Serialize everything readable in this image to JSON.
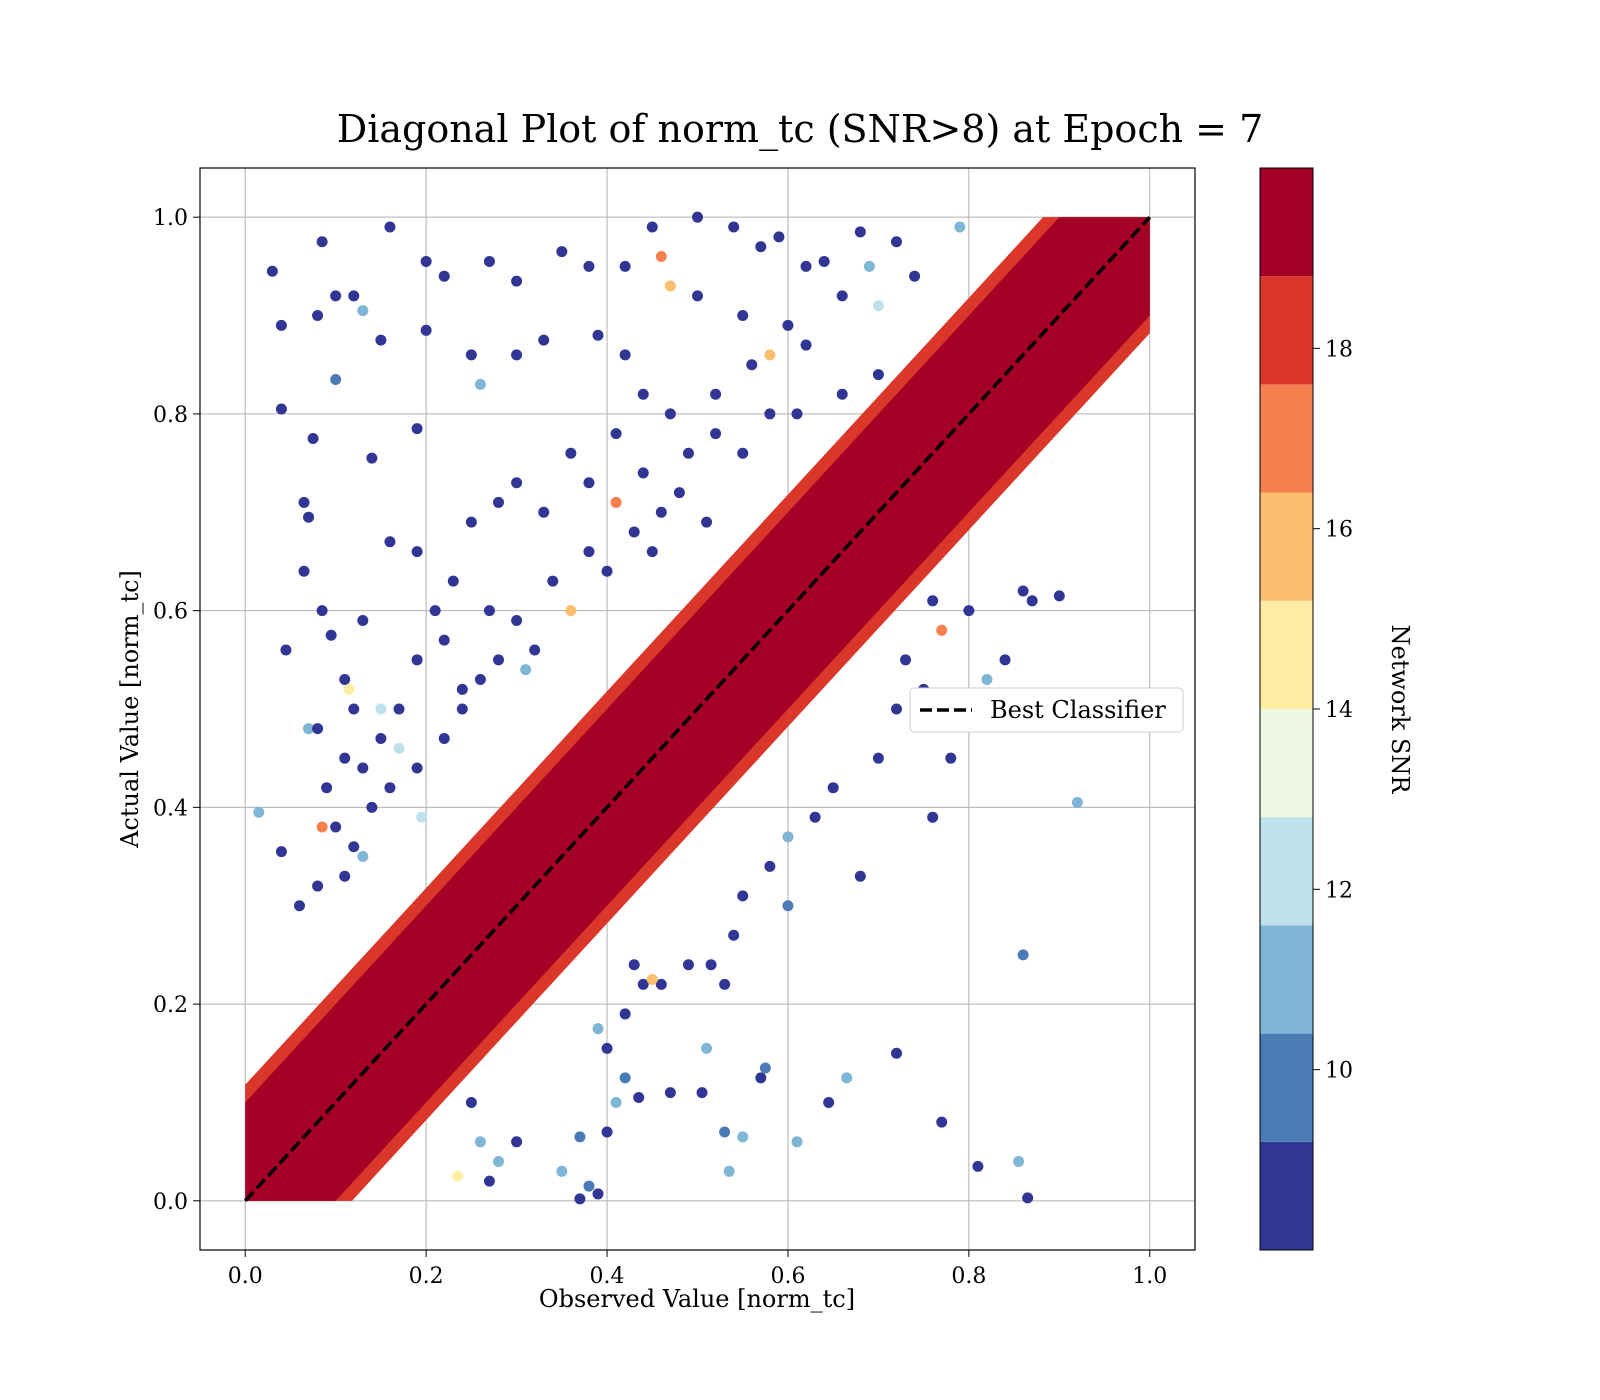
{
  "chart_data": {
    "type": "scatter",
    "title": "Diagonal Plot of norm_tc (SNR>8) at Epoch = 7",
    "xlabel": "Observed Value [norm_tc]",
    "ylabel": "Actual Value [norm_tc]",
    "xlim": [
      -0.05,
      1.05
    ],
    "ylim": [
      -0.05,
      1.05
    ],
    "x_ticks": [
      "0.0",
      "0.2",
      "0.4",
      "0.6",
      "0.8",
      "1.0"
    ],
    "y_ticks": [
      "0.0",
      "0.2",
      "0.4",
      "0.6",
      "0.8",
      "1.0"
    ],
    "grid": true,
    "reference_line": {
      "label": "Best Classifier",
      "from": [
        0,
        0
      ],
      "to": [
        1,
        1
      ],
      "color": "#000000",
      "style": "dashed"
    },
    "legend_location": "center-right",
    "colorbar": {
      "label": "Network SNR",
      "range": [
        8,
        20
      ],
      "ticks": [
        "10",
        "12",
        "14",
        "16",
        "18"
      ],
      "levels": [
        {
          "from": 8,
          "to": 9.2,
          "color": "#313695"
        },
        {
          "from": 9.2,
          "to": 10.4,
          "color": "#4a7bb7"
        },
        {
          "from": 10.4,
          "to": 11.6,
          "color": "#7fb5d5"
        },
        {
          "from": 11.6,
          "to": 12.8,
          "color": "#bde2ec"
        },
        {
          "from": 12.8,
          "to": 14.0,
          "color": "#eef7e1"
        },
        {
          "from": 14.0,
          "to": 15.2,
          "color": "#feeda2"
        },
        {
          "from": 15.2,
          "to": 16.4,
          "color": "#fdbe70"
        },
        {
          "from": 16.4,
          "to": 17.6,
          "color": "#f57f4f"
        },
        {
          "from": 17.6,
          "to": 18.8,
          "color": "#da372a"
        },
        {
          "from": 18.8,
          "to": 20.0,
          "color": "#a50026"
        }
      ]
    },
    "dense_band": {
      "center_line": "y = x",
      "half_width_snr_high": 0.1,
      "color": "#a50026"
    },
    "points": [
      [
        0.16,
        0.99,
        8.5
      ],
      [
        0.03,
        0.945,
        8.5
      ],
      [
        0.085,
        0.975,
        8.5
      ],
      [
        0.2,
        0.955,
        8.5
      ],
      [
        0.22,
        0.94,
        8.5
      ],
      [
        0.04,
        0.89,
        8.5
      ],
      [
        0.08,
        0.9,
        8.5
      ],
      [
        0.1,
        0.92,
        8.5
      ],
      [
        0.12,
        0.92,
        8.5
      ],
      [
        0.13,
        0.905,
        11
      ],
      [
        0.1,
        0.835,
        10
      ],
      [
        0.15,
        0.875,
        8.5
      ],
      [
        0.04,
        0.805,
        8.5
      ],
      [
        0.075,
        0.775,
        8.5
      ],
      [
        0.14,
        0.755,
        8.5
      ],
      [
        0.19,
        0.785,
        8.5
      ],
      [
        0.2,
        0.885,
        8.5
      ],
      [
        0.25,
        0.86,
        8.5
      ],
      [
        0.26,
        0.83,
        11
      ],
      [
        0.3,
        0.86,
        8.5
      ],
      [
        0.33,
        0.875,
        8.5
      ],
      [
        0.27,
        0.955,
        8.5
      ],
      [
        0.3,
        0.935,
        8.5
      ],
      [
        0.35,
        0.965,
        8.5
      ],
      [
        0.38,
        0.95,
        8.5
      ],
      [
        0.42,
        0.95,
        8.5
      ],
      [
        0.45,
        0.99,
        8.5
      ],
      [
        0.5,
        1.0,
        8.5
      ],
      [
        0.54,
        0.99,
        8.5
      ],
      [
        0.57,
        0.97,
        8.5
      ],
      [
        0.59,
        0.98,
        8.5
      ],
      [
        0.62,
        0.95,
        8.5
      ],
      [
        0.64,
        0.955,
        8.5
      ],
      [
        0.66,
        0.92,
        8.5
      ],
      [
        0.68,
        0.985,
        8.5
      ],
      [
        0.72,
        0.975,
        8.5
      ],
      [
        0.74,
        0.94,
        8.5
      ],
      [
        0.79,
        0.99,
        11
      ],
      [
        0.5,
        0.92,
        8.5
      ],
      [
        0.47,
        0.93,
        15.5
      ],
      [
        0.46,
        0.96,
        17
      ],
      [
        0.55,
        0.9,
        8.5
      ],
      [
        0.6,
        0.89,
        8.5
      ],
      [
        0.7,
        0.91,
        12
      ],
      [
        0.69,
        0.95,
        11
      ],
      [
        0.39,
        0.88,
        8.5
      ],
      [
        0.42,
        0.86,
        8.5
      ],
      [
        0.44,
        0.82,
        8.5
      ],
      [
        0.47,
        0.8,
        8.5
      ],
      [
        0.52,
        0.82,
        8.5
      ],
      [
        0.56,
        0.85,
        8.5
      ],
      [
        0.58,
        0.86,
        16
      ],
      [
        0.62,
        0.87,
        8.5
      ],
      [
        0.66,
        0.82,
        8.5
      ],
      [
        0.7,
        0.84,
        8.5
      ],
      [
        0.045,
        0.56,
        8.5
      ],
      [
        0.065,
        0.71,
        8.5
      ],
      [
        0.07,
        0.695,
        8.5
      ],
      [
        0.065,
        0.64,
        8.5
      ],
      [
        0.085,
        0.6,
        8.5
      ],
      [
        0.095,
        0.575,
        8.5
      ],
      [
        0.07,
        0.48,
        11
      ],
      [
        0.08,
        0.48,
        8.5
      ],
      [
        0.015,
        0.395,
        11
      ],
      [
        0.11,
        0.53,
        8.5
      ],
      [
        0.12,
        0.5,
        8.5
      ],
      [
        0.13,
        0.59,
        8.5
      ],
      [
        0.16,
        0.67,
        8.5
      ],
      [
        0.19,
        0.66,
        8.5
      ],
      [
        0.21,
        0.6,
        8.5
      ],
      [
        0.23,
        0.63,
        8.5
      ],
      [
        0.25,
        0.69,
        8.5
      ],
      [
        0.28,
        0.71,
        8.5
      ],
      [
        0.3,
        0.73,
        8.5
      ],
      [
        0.33,
        0.7,
        8.5
      ],
      [
        0.36,
        0.76,
        8.5
      ],
      [
        0.38,
        0.73,
        8.5
      ],
      [
        0.41,
        0.78,
        8.5
      ],
      [
        0.44,
        0.74,
        8.5
      ],
      [
        0.46,
        0.7,
        8.5
      ],
      [
        0.49,
        0.76,
        8.5
      ],
      [
        0.52,
        0.78,
        8.5
      ],
      [
        0.55,
        0.76,
        8.5
      ],
      [
        0.58,
        0.8,
        8.5
      ],
      [
        0.61,
        0.8,
        8.5
      ],
      [
        0.19,
        0.55,
        8.5
      ],
      [
        0.22,
        0.57,
        8.5
      ],
      [
        0.24,
        0.52,
        8.5
      ],
      [
        0.27,
        0.6,
        8.5
      ],
      [
        0.3,
        0.59,
        8.5
      ],
      [
        0.32,
        0.56,
        8.5
      ],
      [
        0.34,
        0.63,
        8.5
      ],
      [
        0.36,
        0.6,
        15.5
      ],
      [
        0.38,
        0.66,
        8.5
      ],
      [
        0.4,
        0.64,
        8.5
      ],
      [
        0.43,
        0.68,
        8.5
      ],
      [
        0.45,
        0.66,
        8.5
      ],
      [
        0.48,
        0.72,
        8.5
      ],
      [
        0.41,
        0.71,
        17.5
      ],
      [
        0.51,
        0.69,
        8.5
      ],
      [
        0.11,
        0.45,
        8.5
      ],
      [
        0.13,
        0.44,
        8.5
      ],
      [
        0.15,
        0.47,
        8.5
      ],
      [
        0.17,
        0.5,
        8.5
      ],
      [
        0.19,
        0.44,
        8.5
      ],
      [
        0.22,
        0.47,
        8.5
      ],
      [
        0.24,
        0.5,
        8.5
      ],
      [
        0.26,
        0.53,
        8.5
      ],
      [
        0.28,
        0.55,
        8.5
      ],
      [
        0.31,
        0.54,
        11
      ],
      [
        0.09,
        0.42,
        8.5
      ],
      [
        0.1,
        0.38,
        8.5
      ],
      [
        0.12,
        0.36,
        8.5
      ],
      [
        0.14,
        0.4,
        8.5
      ],
      [
        0.16,
        0.42,
        8.5
      ],
      [
        0.04,
        0.355,
        8.5
      ],
      [
        0.06,
        0.3,
        8.5
      ],
      [
        0.08,
        0.32,
        8.5
      ],
      [
        0.11,
        0.33,
        8.5
      ],
      [
        0.13,
        0.35,
        11
      ],
      [
        0.085,
        0.38,
        17.5
      ],
      [
        0.115,
        0.52,
        14
      ],
      [
        0.15,
        0.5,
        12
      ],
      [
        0.17,
        0.46,
        12
      ],
      [
        0.195,
        0.39,
        12
      ],
      [
        0.9,
        0.615,
        8.5
      ],
      [
        0.87,
        0.61,
        8.5
      ],
      [
        0.86,
        0.62,
        8.5
      ],
      [
        0.8,
        0.6,
        8.5
      ],
      [
        0.76,
        0.61,
        8.5
      ],
      [
        0.77,
        0.58,
        17.5
      ],
      [
        0.73,
        0.55,
        8.5
      ],
      [
        0.75,
        0.52,
        8.5
      ],
      [
        0.72,
        0.5,
        8.5
      ],
      [
        0.7,
        0.45,
        8.5
      ],
      [
        0.65,
        0.42,
        8.5
      ],
      [
        0.63,
        0.39,
        8.5
      ],
      [
        0.6,
        0.37,
        11
      ],
      [
        0.58,
        0.34,
        8.5
      ],
      [
        0.55,
        0.31,
        8.5
      ],
      [
        0.82,
        0.53,
        11
      ],
      [
        0.84,
        0.55,
        8.5
      ],
      [
        0.78,
        0.45,
        8.5
      ],
      [
        0.76,
        0.39,
        8.5
      ],
      [
        0.92,
        0.405,
        11
      ],
      [
        0.68,
        0.33,
        8.5
      ],
      [
        0.6,
        0.3,
        10
      ],
      [
        0.54,
        0.27,
        8.5
      ],
      [
        0.49,
        0.24,
        8.5
      ],
      [
        0.46,
        0.22,
        8.5
      ],
      [
        0.86,
        0.25,
        10
      ],
      [
        0.72,
        0.15,
        8.5
      ],
      [
        0.77,
        0.08,
        8.5
      ],
      [
        0.81,
        0.035,
        8.5
      ],
      [
        0.855,
        0.04,
        11
      ],
      [
        0.865,
        0.003,
        8.5
      ],
      [
        0.665,
        0.125,
        11
      ],
      [
        0.645,
        0.1,
        8.5
      ],
      [
        0.61,
        0.06,
        11
      ],
      [
        0.575,
        0.135,
        10
      ],
      [
        0.57,
        0.125,
        8.5
      ],
      [
        0.55,
        0.065,
        11
      ],
      [
        0.53,
        0.07,
        10
      ],
      [
        0.535,
        0.03,
        11
      ],
      [
        0.505,
        0.11,
        8.5
      ],
      [
        0.51,
        0.155,
        11
      ],
      [
        0.47,
        0.11,
        8.5
      ],
      [
        0.435,
        0.105,
        8.5
      ],
      [
        0.42,
        0.125,
        10
      ],
      [
        0.41,
        0.1,
        11
      ],
      [
        0.4,
        0.07,
        8.5
      ],
      [
        0.37,
        0.065,
        10
      ],
      [
        0.35,
        0.03,
        11
      ],
      [
        0.38,
        0.015,
        10
      ],
      [
        0.39,
        0.007,
        8.5
      ],
      [
        0.37,
        0.002,
        8.5
      ],
      [
        0.4,
        0.155,
        8.5
      ],
      [
        0.39,
        0.175,
        11
      ],
      [
        0.42,
        0.19,
        8.5
      ],
      [
        0.44,
        0.22,
        8.5
      ],
      [
        0.45,
        0.225,
        15.5
      ],
      [
        0.43,
        0.24,
        8.5
      ],
      [
        0.515,
        0.24,
        8.5
      ],
      [
        0.53,
        0.22,
        8.5
      ],
      [
        0.3,
        0.06,
        8.5
      ],
      [
        0.28,
        0.04,
        11
      ],
      [
        0.25,
        0.1,
        8.5
      ],
      [
        0.26,
        0.06,
        11
      ],
      [
        0.27,
        0.02,
        8.5
      ],
      [
        0.235,
        0.025,
        15
      ]
    ]
  }
}
